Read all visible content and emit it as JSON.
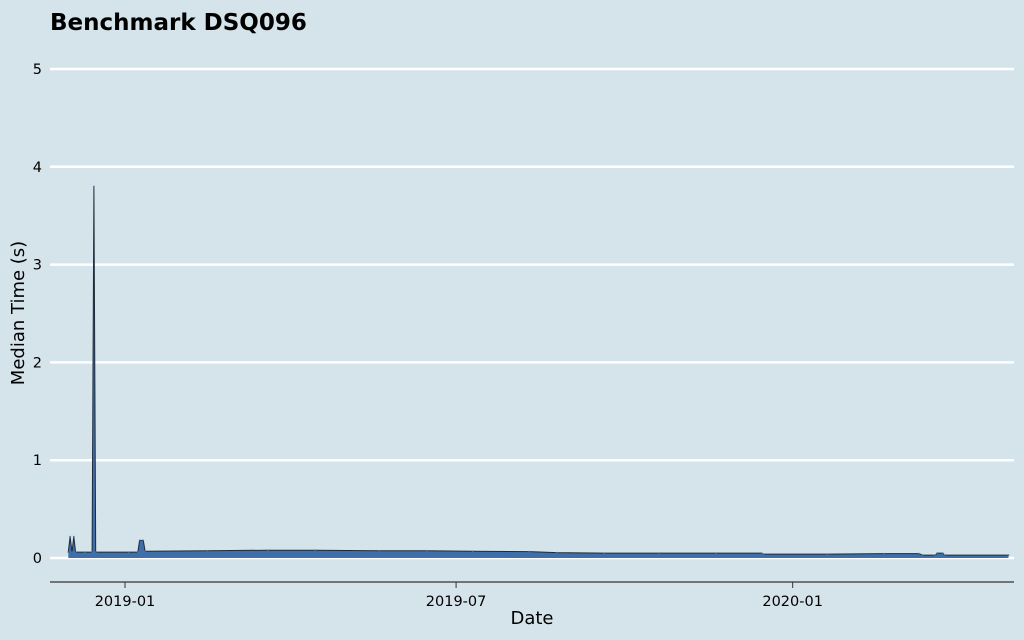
{
  "chart_data": {
    "type": "line",
    "title": "Benchmark DSQ096",
    "xlabel": "Date",
    "ylabel": "Median Time (s)",
    "ylim": [
      0,
      5
    ],
    "xlim": [
      "2018-11-21",
      "2020-05-01"
    ],
    "yticks": [
      0,
      1,
      2,
      3,
      4,
      5
    ],
    "xticks": [
      {
        "date": "2019-01-01",
        "label": "2019-01"
      },
      {
        "date": "2019-07-01",
        "label": "2019-07"
      },
      {
        "date": "2020-01-01",
        "label": "2020-01"
      }
    ],
    "grid": "horizontal",
    "legend": "none",
    "colors": {
      "background": "#d5e3ea",
      "line": "#3f6fab",
      "grid": "#ffffff",
      "edge": "#1f2b3a"
    },
    "series": [
      {
        "name": "",
        "points": [
          [
            "2018-12-01",
            0.06
          ],
          [
            "2018-12-02",
            0.22
          ],
          [
            "2018-12-03",
            0.06
          ],
          [
            "2018-12-04",
            0.22
          ],
          [
            "2018-12-05",
            0.06
          ],
          [
            "2018-12-10",
            0.06
          ],
          [
            "2018-12-14",
            0.06
          ],
          [
            "2018-12-15",
            3.8
          ],
          [
            "2018-12-16",
            0.06
          ],
          [
            "2019-01-03",
            0.06
          ],
          [
            "2019-01-08",
            0.06
          ],
          [
            "2019-01-09",
            0.18
          ],
          [
            "2019-01-11",
            0.18
          ],
          [
            "2019-01-12",
            0.07
          ],
          [
            "2019-02-15",
            0.075
          ],
          [
            "2019-03-20",
            0.08
          ],
          [
            "2019-04-15",
            0.08
          ],
          [
            "2019-05-20",
            0.075
          ],
          [
            "2019-06-15",
            0.075
          ],
          [
            "2019-07-10",
            0.07
          ],
          [
            "2019-08-10",
            0.065
          ],
          [
            "2019-08-25",
            0.055
          ],
          [
            "2019-09-20",
            0.05
          ],
          [
            "2019-10-20",
            0.05
          ],
          [
            "2019-11-20",
            0.05
          ],
          [
            "2019-12-15",
            0.05
          ],
          [
            "2019-12-16",
            0.04
          ],
          [
            "2020-01-20",
            0.04
          ],
          [
            "2020-02-20",
            0.045
          ],
          [
            "2020-03-10",
            0.045
          ],
          [
            "2020-03-12",
            0.03
          ],
          [
            "2020-03-19",
            0.03
          ],
          [
            "2020-03-20",
            0.05
          ],
          [
            "2020-03-23",
            0.05
          ],
          [
            "2020-03-24",
            0.03
          ],
          [
            "2020-04-28",
            0.03
          ]
        ]
      }
    ]
  }
}
